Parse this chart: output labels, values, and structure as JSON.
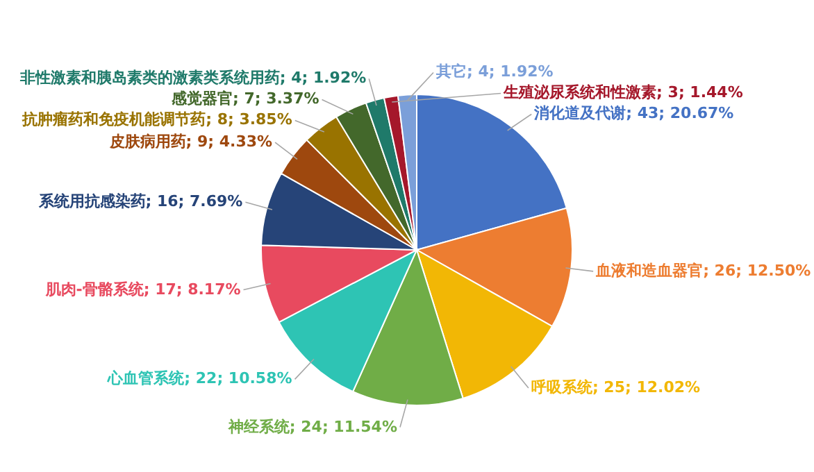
{
  "chart_data": {
    "type": "pie",
    "categories": [
      "消化道及代谢",
      "血液和造血器官",
      "呼吸系统",
      "神经系统",
      "心血管系统",
      "肌肉-骨骼系统",
      "系统用抗感染药",
      "皮肤病用药",
      "抗肿瘤药和免疫机能调节药",
      "感觉器官",
      "非性激素和胰岛素类的激素类系统用药",
      "生殖泌尿系统和性激素",
      "其它"
    ],
    "values": [
      43,
      26,
      25,
      24,
      22,
      17,
      16,
      9,
      8,
      7,
      4,
      3,
      4
    ],
    "value_labels": [
      "43; 20.67%",
      "26; 12.50%",
      "25; 12.02%",
      "24; 11.54%",
      "22; 10.58%",
      "17; 8.17%",
      "16; 7.69%",
      "9; 4.33%",
      "8; 3.85%",
      "7; 3.37%",
      "4; 1.92%",
      "3; 1.44%",
      "4; 1.92%"
    ],
    "colors": [
      "#4472c4",
      "#ed7d31",
      "#f2b705",
      "#70ad47",
      "#2ec4b4",
      "#e84a5f",
      "#264478",
      "#9e480e",
      "#997300",
      "#43682b",
      "#1f7a6a",
      "#a5182b",
      "#7b9fd9"
    ]
  }
}
